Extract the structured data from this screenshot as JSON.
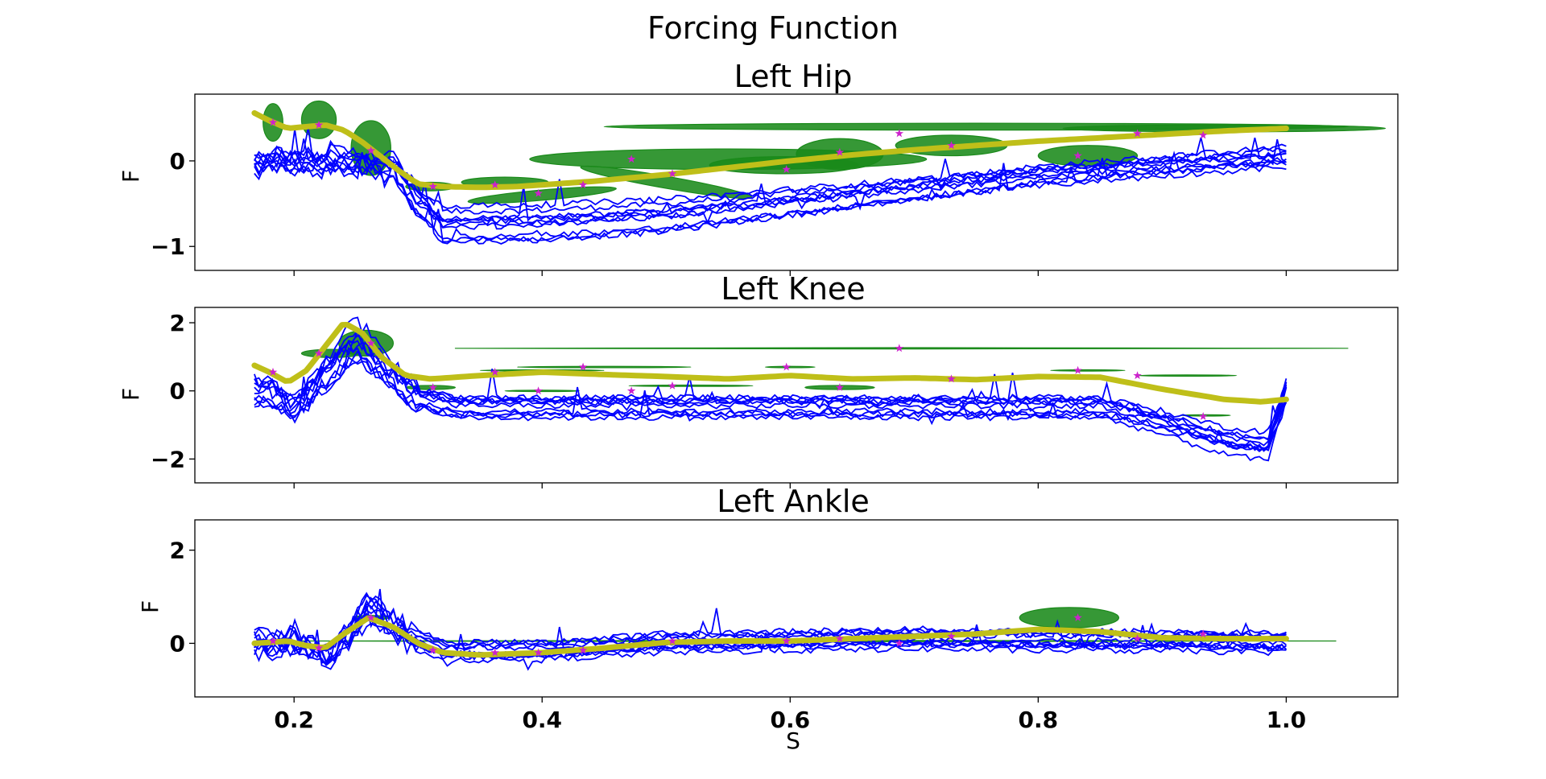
{
  "chart_data": {
    "type": "line",
    "suptitle": "Forcing Function",
    "xlabel": "S",
    "xlim": [
      0.12,
      1.09
    ],
    "xticks": [
      0.2,
      0.4,
      0.6,
      0.8,
      1.0
    ],
    "xtick_labels": [
      "0.2",
      "0.4",
      "0.6",
      "0.8",
      "1.0"
    ],
    "colors": {
      "traces": "#0000ff",
      "mean": "#bfbf19",
      "ellipse": "#1a8a1a",
      "star": "#cc22cc"
    },
    "panels": [
      {
        "title": "Left Hip",
        "ylabel": "F",
        "ylim": [
          -1.28,
          0.78
        ],
        "yticks": [
          -1,
          0
        ],
        "ytick_labels": [
          "−1",
          "0"
        ],
        "mean_curve": {
          "x": [
            0.168,
            0.18,
            0.195,
            0.21,
            0.225,
            0.24,
            0.255,
            0.27,
            0.285,
            0.3,
            0.32,
            0.35,
            0.38,
            0.41,
            0.44,
            0.47,
            0.5,
            0.55,
            0.6,
            0.65,
            0.7,
            0.75,
            0.8,
            0.85,
            0.9,
            0.95,
            1.0
          ],
          "y": [
            0.56,
            0.47,
            0.38,
            0.4,
            0.42,
            0.36,
            0.22,
            0.05,
            -0.12,
            -0.27,
            -0.3,
            -0.31,
            -0.3,
            -0.27,
            -0.24,
            -0.2,
            -0.16,
            -0.08,
            0.0,
            0.07,
            0.13,
            0.18,
            0.23,
            0.27,
            0.31,
            0.35,
            0.38
          ]
        },
        "trace_profile": {
          "x": [
            0.168,
            0.2,
            0.24,
            0.28,
            0.3,
            0.32,
            0.4,
            0.5,
            0.6,
            0.7,
            0.8,
            0.9,
            0.95,
            1.0
          ],
          "y": [
            0.0,
            0.0,
            0.0,
            -0.05,
            -0.45,
            -0.7,
            -0.68,
            -0.6,
            -0.45,
            -0.3,
            -0.15,
            -0.05,
            0.0,
            0.05
          ]
        },
        "stars": [
          [
            0.183,
            0.45
          ],
          [
            0.22,
            0.42
          ],
          [
            0.262,
            0.12
          ],
          [
            0.312,
            -0.3
          ],
          [
            0.362,
            -0.28
          ],
          [
            0.397,
            -0.38
          ],
          [
            0.433,
            -0.28
          ],
          [
            0.472,
            0.02
          ],
          [
            0.505,
            -0.15
          ],
          [
            0.597,
            -0.1
          ],
          [
            0.64,
            0.1
          ],
          [
            0.688,
            0.32
          ],
          [
            0.73,
            0.18
          ],
          [
            0.832,
            0.06
          ],
          [
            0.88,
            0.32
          ],
          [
            0.933,
            0.3
          ]
        ],
        "ellipses": [
          [
            0.183,
            0.45,
            0.008,
            0.22,
            0
          ],
          [
            0.22,
            0.48,
            0.014,
            0.22,
            0
          ],
          [
            0.262,
            0.15,
            0.016,
            0.32,
            0
          ],
          [
            0.31,
            -0.3,
            0.02,
            0.05,
            0
          ],
          [
            0.37,
            -0.25,
            0.035,
            0.06,
            0
          ],
          [
            0.4,
            -0.4,
            0.06,
            0.06,
            -5
          ],
          [
            0.55,
            0.02,
            0.16,
            0.12,
            0
          ],
          [
            0.595,
            -0.05,
            0.06,
            0.1,
            0
          ],
          [
            0.64,
            0.08,
            0.035,
            0.18,
            0
          ],
          [
            0.75,
            0.4,
            0.3,
            0.04,
            0
          ],
          [
            0.73,
            0.18,
            0.045,
            0.12,
            0
          ],
          [
            0.84,
            0.06,
            0.04,
            0.12,
            0
          ],
          [
            0.95,
            0.38,
            0.13,
            0.04,
            0
          ],
          [
            0.5,
            -0.25,
            0.07,
            0.07,
            10
          ]
        ]
      },
      {
        "title": "Left Knee",
        "ylabel": "F",
        "ylim": [
          -2.7,
          2.45
        ],
        "yticks": [
          -2,
          0,
          2
        ],
        "ytick_labels": [
          "−2",
          "0",
          "2"
        ],
        "mean_curve": {
          "x": [
            0.168,
            0.18,
            0.195,
            0.21,
            0.225,
            0.24,
            0.255,
            0.27,
            0.29,
            0.31,
            0.35,
            0.4,
            0.45,
            0.5,
            0.55,
            0.6,
            0.65,
            0.7,
            0.75,
            0.8,
            0.85,
            0.9,
            0.95,
            0.98,
            1.0
          ],
          "y": [
            0.75,
            0.55,
            0.25,
            0.6,
            1.3,
            2.0,
            1.7,
            1.0,
            0.45,
            0.35,
            0.45,
            0.55,
            0.48,
            0.42,
            0.35,
            0.45,
            0.35,
            0.38,
            0.33,
            0.42,
            0.4,
            0.05,
            -0.25,
            -0.32,
            -0.25
          ]
        },
        "trace_profile": {
          "x": [
            0.168,
            0.18,
            0.2,
            0.22,
            0.25,
            0.27,
            0.3,
            0.33,
            0.4,
            0.6,
            0.85,
            0.9,
            0.95,
            0.985,
            1.0
          ],
          "y": [
            0.0,
            0.0,
            -0.6,
            0.3,
            1.6,
            0.8,
            -0.2,
            -0.5,
            -0.5,
            -0.5,
            -0.5,
            -1.0,
            -1.6,
            -1.8,
            0.0
          ]
        },
        "stars": [
          [
            0.183,
            0.55
          ],
          [
            0.22,
            1.1
          ],
          [
            0.262,
            1.4
          ],
          [
            0.312,
            0.1
          ],
          [
            0.362,
            0.55
          ],
          [
            0.397,
            0.0
          ],
          [
            0.433,
            0.7
          ],
          [
            0.472,
            0.0
          ],
          [
            0.505,
            0.15
          ],
          [
            0.597,
            0.7
          ],
          [
            0.64,
            0.1
          ],
          [
            0.688,
            1.25
          ],
          [
            0.73,
            0.35
          ],
          [
            0.832,
            0.6
          ],
          [
            0.88,
            0.45
          ],
          [
            0.933,
            -0.75
          ]
        ],
        "ellipses": [
          [
            0.23,
            1.1,
            0.024,
            0.12,
            0
          ],
          [
            0.258,
            1.4,
            0.022,
            0.38,
            0
          ],
          [
            0.31,
            0.1,
            0.02,
            0.06,
            0
          ],
          [
            0.64,
            0.1,
            0.028,
            0.06,
            0
          ],
          [
            0.69,
            1.25,
            0.36,
            0.02,
            0
          ],
          [
            0.4,
            0.6,
            0.05,
            0.02,
            0
          ],
          [
            0.45,
            0.7,
            0.07,
            0.02,
            0
          ],
          [
            0.52,
            0.15,
            0.05,
            0.02,
            0
          ],
          [
            0.6,
            0.7,
            0.02,
            0.02,
            0
          ],
          [
            0.84,
            0.6,
            0.03,
            0.02,
            0
          ],
          [
            0.92,
            0.45,
            0.04,
            0.02,
            0
          ],
          [
            0.935,
            -0.72,
            0.02,
            0.02,
            0
          ],
          [
            0.4,
            0.0,
            0.03,
            0.02,
            0
          ]
        ]
      },
      {
        "title": "Left Ankle",
        "ylabel": "F",
        "ylim": [
          -1.15,
          2.65
        ],
        "yticks": [
          0,
          2
        ],
        "ytick_labels": [
          "0",
          "2"
        ],
        "mean_curve": {
          "x": [
            0.168,
            0.18,
            0.195,
            0.21,
            0.225,
            0.24,
            0.26,
            0.28,
            0.3,
            0.32,
            0.35,
            0.4,
            0.45,
            0.5,
            0.55,
            0.6,
            0.65,
            0.7,
            0.75,
            0.8,
            0.85,
            0.9,
            0.95,
            1.0
          ],
          "y": [
            0.0,
            0.02,
            0.05,
            -0.05,
            -0.1,
            0.2,
            0.55,
            0.35,
            0.0,
            -0.2,
            -0.25,
            -0.2,
            -0.1,
            0.02,
            0.05,
            0.05,
            0.1,
            0.15,
            0.2,
            0.3,
            0.25,
            0.12,
            0.1,
            0.1
          ]
        },
        "trace_profile": {
          "x": [
            0.168,
            0.2,
            0.23,
            0.26,
            0.29,
            0.32,
            0.4,
            0.5,
            0.6,
            0.7,
            0.8,
            0.9,
            1.0
          ],
          "y": [
            0.0,
            0.0,
            -0.3,
            0.8,
            0.2,
            -0.2,
            -0.2,
            0.0,
            0.05,
            0.1,
            0.05,
            0.05,
            0.0
          ]
        },
        "stars": [
          [
            0.183,
            0.05
          ],
          [
            0.22,
            -0.1
          ],
          [
            0.262,
            0.55
          ],
          [
            0.312,
            -0.15
          ],
          [
            0.362,
            -0.2
          ],
          [
            0.397,
            -0.2
          ],
          [
            0.433,
            -0.15
          ],
          [
            0.505,
            0.05
          ],
          [
            0.597,
            0.05
          ],
          [
            0.64,
            0.1
          ],
          [
            0.688,
            0.0
          ],
          [
            0.73,
            0.15
          ],
          [
            0.832,
            0.55
          ],
          [
            0.88,
            0.1
          ],
          [
            0.933,
            0.2
          ]
        ],
        "ellipses": [
          [
            0.825,
            0.55,
            0.04,
            0.22,
            0
          ],
          [
            0.62,
            0.05,
            0.42,
            0.015,
            0
          ],
          [
            0.262,
            0.55,
            0.014,
            0.05,
            0
          ]
        ]
      }
    ]
  }
}
